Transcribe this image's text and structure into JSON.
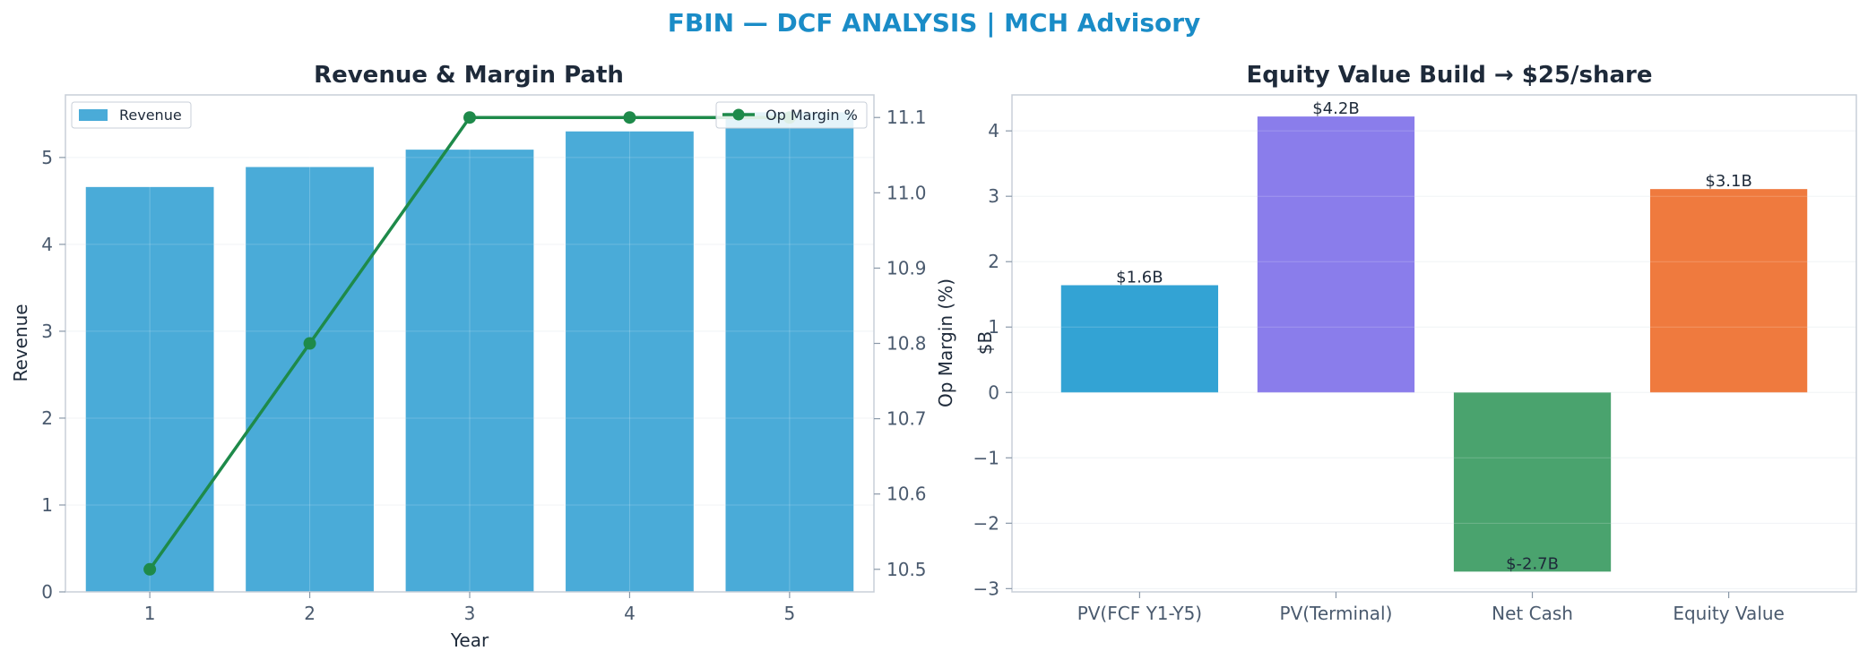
{
  "suptitle": "FBIN — DCF ANALYSIS | MCH Advisory",
  "chart_data": [
    {
      "type": "bar",
      "title": "Revenue & Margin Path",
      "xlabel": "Year",
      "ylabel": "Revenue",
      "y2label": "Op Margin (%)",
      "categories": [
        "1",
        "2",
        "3",
        "4",
        "5"
      ],
      "ylim": [
        0,
        5.72
      ],
      "yticks": [
        "0",
        "1",
        "2",
        "3",
        "4",
        "5"
      ],
      "y2lim": [
        10.47,
        11.13
      ],
      "y2ticks": [
        "10.5",
        "10.6",
        "10.7",
        "10.8",
        "10.9",
        "11.0",
        "11.1"
      ],
      "grid": true,
      "series": [
        {
          "name": "Revenue",
          "type": "bar",
          "values": [
            4.66,
            4.89,
            5.09,
            5.3,
            5.52
          ],
          "color": "#4aabd8",
          "legend": "top-left"
        },
        {
          "name": "Op Margin %",
          "type": "line",
          "axis": "right",
          "values": [
            10.5,
            10.8,
            11.1,
            11.1,
            11.1
          ],
          "color": "#1e8a4a",
          "legend": "top-right"
        }
      ]
    },
    {
      "type": "bar",
      "title": "Equity Value Build → $25/share",
      "ylabel": "$B",
      "categories": [
        "PV(FCF Y1-Y5)",
        "PV(Terminal)",
        "Net Cash",
        "Equity Value"
      ],
      "values": [
        1.64,
        4.22,
        -2.74,
        3.11
      ],
      "labels": [
        "$1.6B",
        "$4.2B",
        "$-2.7B",
        "$3.1B"
      ],
      "colors": [
        "#33a3d4",
        "#8a7deb",
        "#4aa36e",
        "#ef7a3e"
      ],
      "ylim": [
        -3.05,
        4.55
      ],
      "yticks": [
        "−3",
        "−2",
        "−1",
        "0",
        "1",
        "2",
        "3",
        "4"
      ],
      "grid": true
    }
  ]
}
